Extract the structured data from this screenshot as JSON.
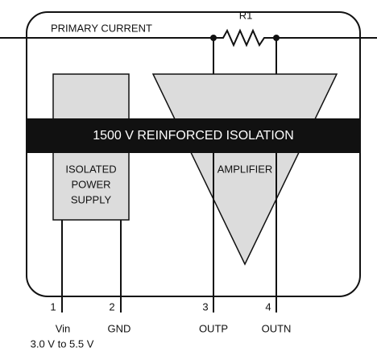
{
  "primary_current": "PRIMARY CURRENT",
  "resistor": "R1",
  "isolation": "1500 V REINFORCED ISOLATION",
  "power_supply": [
    "ISOLATED",
    "POWER",
    "SUPPLY"
  ],
  "amplifier": "AMPLIFIER",
  "pins": [
    {
      "number": 1,
      "name": "Vin"
    },
    {
      "number": 2,
      "name": "GND"
    },
    {
      "number": 3,
      "name": "OUTP"
    },
    {
      "number": 4,
      "name": "OUTN"
    }
  ],
  "vin_range": "3.0 V to 5.5 V"
}
